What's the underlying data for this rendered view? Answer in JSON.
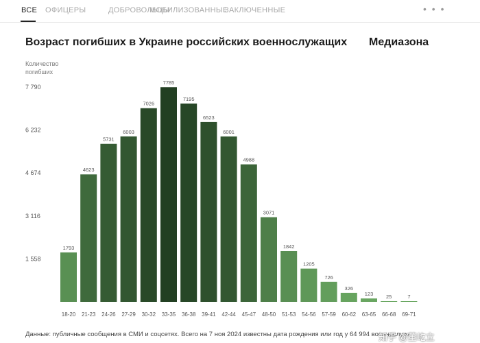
{
  "tabs": [
    {
      "label": "ВСЕ",
      "active": true
    },
    {
      "label": "ОФИЦЕРЫ",
      "active": false
    },
    {
      "label": "ДОБРОВОЛЬЦЫ",
      "active": false
    },
    {
      "label": "МОБИЛИЗОВАННЫЕ",
      "active": false
    },
    {
      "label": "ЗАКЛЮЧЕННЫЕ",
      "active": false
    }
  ],
  "more_label": "• • •",
  "header": {
    "title": "Возраст погибших в Украине российских военнослужащих",
    "brand": "Медиазона"
  },
  "footnote": "Данные: публичные сообщения в СМИ и соцсетях. Всего на 7 ноя 2024 известны дата рождения или год у 64 994 военнослужащих",
  "watermark": "知乎 @董屹立",
  "chart_data": {
    "type": "bar",
    "title": "Возраст погибших в Украине российских военнослужащих",
    "ylabel": "Количество погибших",
    "xlabel": "",
    "yticks": [
      "7 790",
      "6 232",
      "4 674",
      "3 116",
      "1 558"
    ],
    "ytick_values": [
      7790,
      6232,
      4674,
      3116,
      1558
    ],
    "ylim": [
      0,
      7790
    ],
    "grid": false,
    "categories": [
      "18-20",
      "21-23",
      "24-26",
      "27-29",
      "30-32",
      "33-35",
      "36-38",
      "39-41",
      "42-44",
      "45-47",
      "48-50",
      "51-53",
      "54-56",
      "57-59",
      "60-62",
      "63-65",
      "66-68",
      "69-71"
    ],
    "values": [
      1793,
      4623,
      5731,
      6003,
      7026,
      7785,
      7195,
      6523,
      6001,
      4988,
      3071,
      1842,
      1205,
      726,
      326,
      123,
      25,
      7
    ],
    "value_labels": [
      "1793",
      "4623",
      "5731",
      "6003",
      "7026",
      "7785",
      "7195",
      "6523",
      "6001",
      "4988",
      "3071",
      "1842",
      "1205",
      "726",
      "326",
      "123",
      "25",
      "7"
    ],
    "colors": {
      "dark": "#223f22",
      "light": "#6aa862",
      "tick_label": "#555555",
      "value_label": "#555555"
    }
  }
}
